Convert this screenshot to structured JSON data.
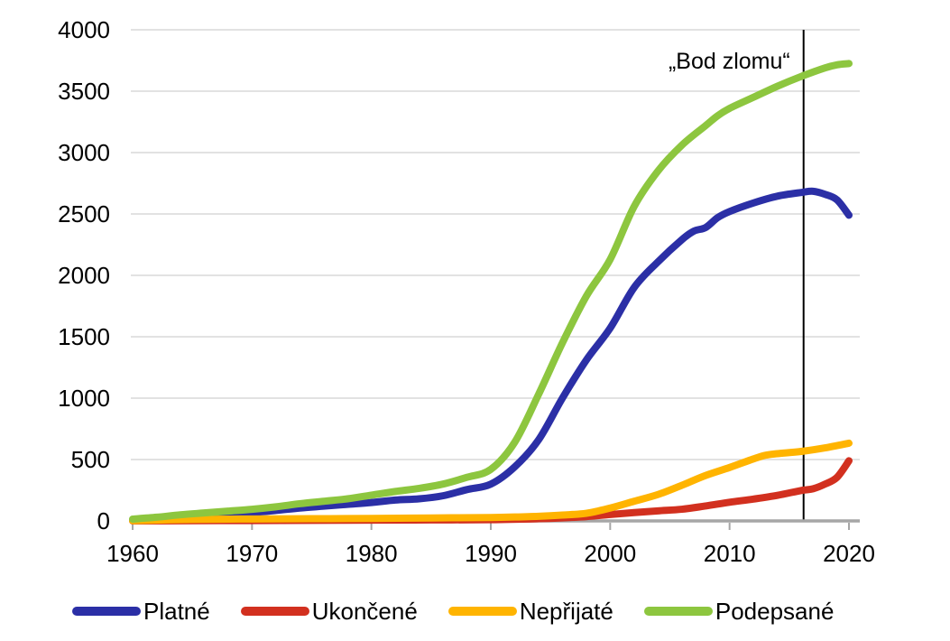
{
  "chart_data": {
    "type": "line",
    "title": "",
    "xlabel": "",
    "ylabel": "",
    "xlim": [
      1959.8,
      2021.0
    ],
    "ylim": [
      0,
      4000
    ],
    "x_ticks": [
      1960,
      1970,
      1980,
      1990,
      2000,
      2010,
      2020
    ],
    "y_ticks": [
      0,
      500,
      1000,
      1500,
      2000,
      2500,
      3000,
      3500,
      4000
    ],
    "grid": true,
    "legend_position": "bottom",
    "annotation": {
      "text": "„Bod zlomu“",
      "x": 2016.2,
      "line_color": "#000000"
    },
    "series": [
      {
        "name": "Platné",
        "color": "#2b2fa6",
        "points": [
          [
            1960,
            8
          ],
          [
            1962,
            18
          ],
          [
            1964,
            35
          ],
          [
            1966,
            48
          ],
          [
            1968,
            58
          ],
          [
            1970,
            68
          ],
          [
            1972,
            85
          ],
          [
            1974,
            105
          ],
          [
            1976,
            120
          ],
          [
            1978,
            135
          ],
          [
            1980,
            150
          ],
          [
            1982,
            170
          ],
          [
            1984,
            180
          ],
          [
            1986,
            205
          ],
          [
            1988,
            255
          ],
          [
            1990,
            300
          ],
          [
            1992,
            440
          ],
          [
            1994,
            660
          ],
          [
            1996,
            1000
          ],
          [
            1998,
            1310
          ],
          [
            2000,
            1570
          ],
          [
            2002,
            1900
          ],
          [
            2004,
            2110
          ],
          [
            2006,
            2290
          ],
          [
            2007,
            2360
          ],
          [
            2008,
            2390
          ],
          [
            2009,
            2470
          ],
          [
            2010,
            2520
          ],
          [
            2012,
            2590
          ],
          [
            2014,
            2645
          ],
          [
            2016,
            2675
          ],
          [
            2017,
            2685
          ],
          [
            2018,
            2660
          ],
          [
            2019,
            2615
          ],
          [
            2020,
            2490
          ]
        ]
      },
      {
        "name": "Ukončené",
        "color": "#d2301f",
        "points": [
          [
            1960,
            0
          ],
          [
            1965,
            2
          ],
          [
            1970,
            3
          ],
          [
            1975,
            5
          ],
          [
            1980,
            6
          ],
          [
            1985,
            8
          ],
          [
            1990,
            10
          ],
          [
            1994,
            18
          ],
          [
            1996,
            25
          ],
          [
            1998,
            35
          ],
          [
            2000,
            52
          ],
          [
            2002,
            68
          ],
          [
            2004,
            82
          ],
          [
            2006,
            95
          ],
          [
            2008,
            122
          ],
          [
            2010,
            152
          ],
          [
            2012,
            178
          ],
          [
            2014,
            208
          ],
          [
            2016,
            248
          ],
          [
            2017,
            262
          ],
          [
            2018,
            300
          ],
          [
            2019,
            355
          ],
          [
            2020,
            490
          ]
        ]
      },
      {
        "name": "Nepřijaté",
        "color": "#ffb400",
        "points": [
          [
            1960,
            2
          ],
          [
            1965,
            12
          ],
          [
            1970,
            16
          ],
          [
            1975,
            18
          ],
          [
            1980,
            20
          ],
          [
            1985,
            24
          ],
          [
            1990,
            28
          ],
          [
            1992,
            32
          ],
          [
            1994,
            38
          ],
          [
            1996,
            48
          ],
          [
            1998,
            62
          ],
          [
            2000,
            105
          ],
          [
            2002,
            160
          ],
          [
            2004,
            215
          ],
          [
            2006,
            290
          ],
          [
            2008,
            370
          ],
          [
            2010,
            435
          ],
          [
            2012,
            505
          ],
          [
            2013,
            535
          ],
          [
            2014,
            548
          ],
          [
            2016,
            566
          ],
          [
            2018,
            595
          ],
          [
            2020,
            633
          ]
        ]
      },
      {
        "name": "Podepsané",
        "color": "#8dc63f",
        "points": [
          [
            1960,
            15
          ],
          [
            1962,
            30
          ],
          [
            1964,
            50
          ],
          [
            1966,
            65
          ],
          [
            1968,
            80
          ],
          [
            1970,
            95
          ],
          [
            1972,
            115
          ],
          [
            1974,
            140
          ],
          [
            1976,
            160
          ],
          [
            1978,
            180
          ],
          [
            1980,
            210
          ],
          [
            1982,
            240
          ],
          [
            1984,
            265
          ],
          [
            1986,
            300
          ],
          [
            1988,
            355
          ],
          [
            1990,
            420
          ],
          [
            1992,
            640
          ],
          [
            1994,
            1030
          ],
          [
            1996,
            1450
          ],
          [
            1998,
            1830
          ],
          [
            2000,
            2130
          ],
          [
            2002,
            2560
          ],
          [
            2004,
            2850
          ],
          [
            2006,
            3060
          ],
          [
            2008,
            3220
          ],
          [
            2009,
            3300
          ],
          [
            2010,
            3360
          ],
          [
            2012,
            3450
          ],
          [
            2014,
            3540
          ],
          [
            2016,
            3620
          ],
          [
            2018,
            3690
          ],
          [
            2019,
            3715
          ],
          [
            2020,
            3725
          ]
        ]
      }
    ]
  },
  "legend": {
    "items": [
      {
        "label": "Platné",
        "color": "#2b2fa6"
      },
      {
        "label": "Ukončené",
        "color": "#d2301f"
      },
      {
        "label": "Nepřijaté",
        "color": "#ffb400"
      },
      {
        "label": "Podepsané",
        "color": "#8dc63f"
      }
    ]
  },
  "colors": {
    "background": "#ffffff",
    "gridline": "#d9d9d9",
    "axis": "#a6a6a6",
    "tick_label": "#000000",
    "annotation_text": "#000000",
    "annotation_line": "#000000"
  }
}
